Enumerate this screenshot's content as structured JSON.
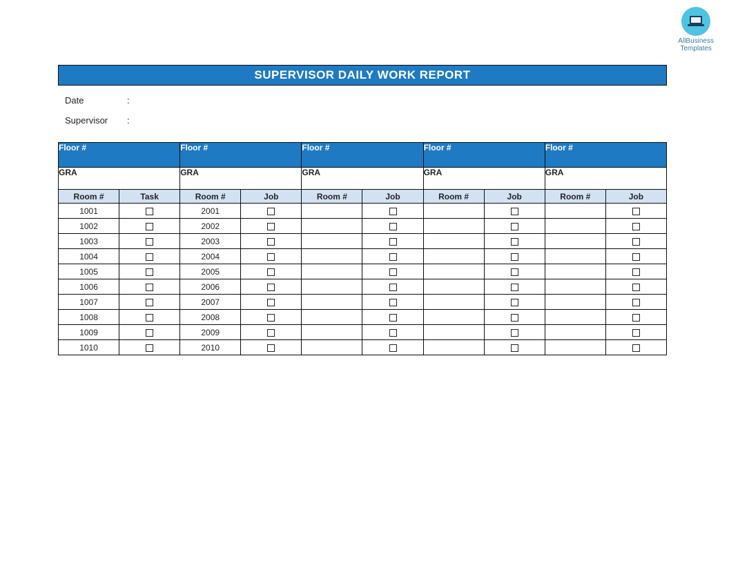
{
  "logo": {
    "line1": "AllBusiness",
    "line2": "Templates"
  },
  "title": "SUPERVISOR DAILY WORK REPORT",
  "meta": {
    "date_label": "Date",
    "supervisor_label": "Supervisor",
    "colon": ":"
  },
  "colors": {
    "header_bg": "#1f7ac4",
    "subhead_bg": "#d3e2f3",
    "border": "#0a0a0a",
    "logo_bg": "#4fc3e2"
  },
  "sections": [
    {
      "floor_label": "Floor #",
      "gra_label": "GRA",
      "room_col": "Room #",
      "task_col": "Task",
      "rooms": [
        "1001",
        "1002",
        "1003",
        "1004",
        "1005",
        "1006",
        "1007",
        "1008",
        "1009",
        "1010"
      ]
    },
    {
      "floor_label": "Floor #",
      "gra_label": "GRA",
      "room_col": "Room #",
      "task_col": "Job",
      "rooms": [
        "2001",
        "2002",
        "2003",
        "2004",
        "2005",
        "2006",
        "2007",
        "2008",
        "2009",
        "2010"
      ]
    },
    {
      "floor_label": "Floor #",
      "gra_label": "GRA",
      "room_col": "Room #",
      "task_col": "Job",
      "rooms": [
        "",
        "",
        "",
        "",
        "",
        "",
        "",
        "",
        "",
        ""
      ]
    },
    {
      "floor_label": "Floor #",
      "gra_label": "GRA",
      "room_col": "Room #",
      "task_col": "Job",
      "rooms": [
        "",
        "",
        "",
        "",
        "",
        "",
        "",
        "",
        "",
        ""
      ]
    },
    {
      "floor_label": "Floor #",
      "gra_label": "GRA",
      "room_col": "Room #",
      "task_col": "Job",
      "rooms": [
        "",
        "",
        "",
        "",
        "",
        "",
        "",
        "",
        "",
        ""
      ]
    }
  ],
  "row_count": 10
}
